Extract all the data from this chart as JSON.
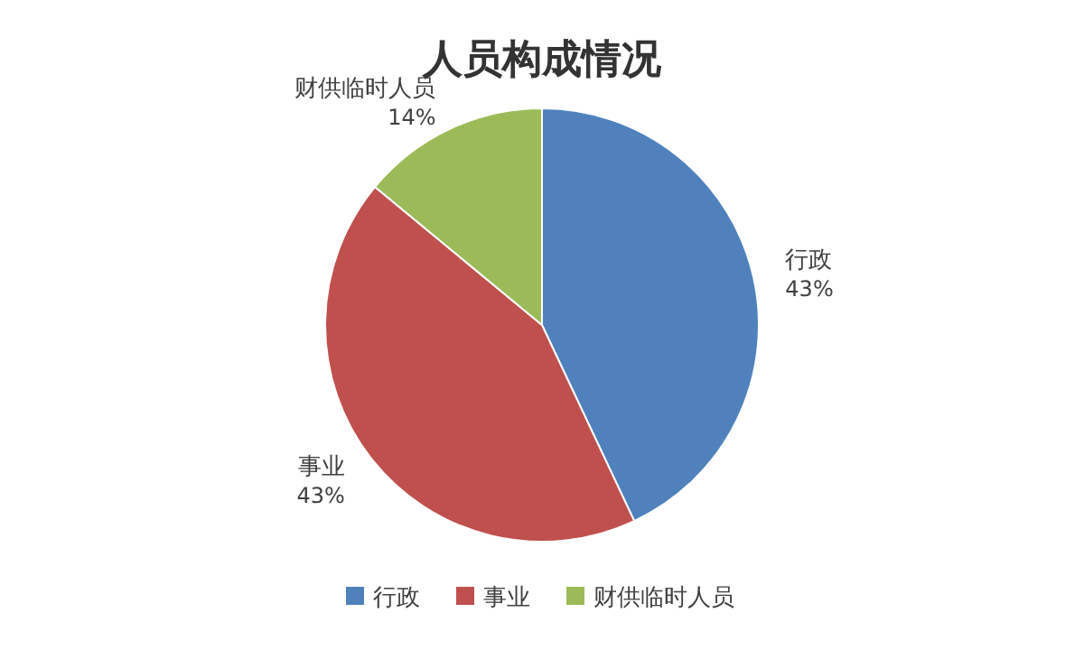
{
  "chart_data": {
    "type": "pie",
    "title": "人员构成情况",
    "categories": [
      "行政",
      "事业",
      "财供临时人员"
    ],
    "values": [
      43,
      43,
      14
    ],
    "colors": [
      "#4f81bd",
      "#c0504d",
      "#9bbb59"
    ],
    "value_labels": [
      "43%",
      "43%",
      "14%"
    ],
    "legend": "bottom"
  }
}
